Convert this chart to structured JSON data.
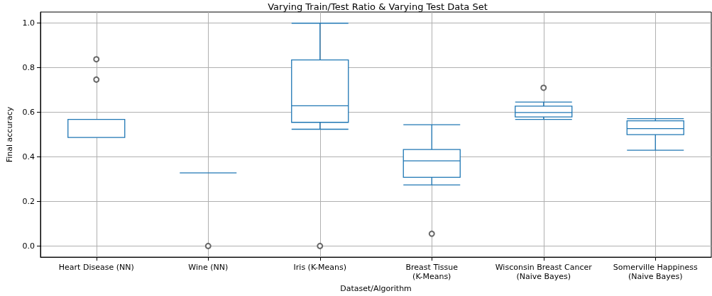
{
  "chart_data": {
    "type": "box",
    "title": "Varying Train/Test Ratio & Varying Test Data Set",
    "xlabel": "Dataset/Algorithm",
    "ylabel": "Final accuracy",
    "categories": [
      "Heart Disease (NN)",
      "Wine (NN)",
      "Iris (K-Means)",
      "Breast Tissue\n(K-Means)",
      "Wisconsin Breast Cancer\n(Naive Bayes)",
      "Somerville Happiness\n(Naive Bayes)"
    ],
    "color": "#1f77b4",
    "boxes": [
      {
        "low": 0.487,
        "q1": 0.487,
        "median": 0.487,
        "q3": 0.568,
        "high": 0.568,
        "outliers": [
          0.838,
          0.747
        ]
      },
      {
        "low": 0.328,
        "q1": 0.328,
        "median": 0.328,
        "q3": 0.328,
        "high": 0.328,
        "outliers": [
          0.0
        ]
      },
      {
        "low": 0.524,
        "q1": 0.555,
        "median": 0.629,
        "q3": 0.835,
        "high": 1.0,
        "outliers": [
          0.0
        ]
      },
      {
        "low": 0.274,
        "q1": 0.308,
        "median": 0.382,
        "q3": 0.433,
        "high": 0.544,
        "outliers": [
          0.055
        ]
      },
      {
        "low": 0.568,
        "q1": 0.579,
        "median": 0.599,
        "q3": 0.628,
        "high": 0.646,
        "outliers": [
          0.71
        ]
      },
      {
        "low": 0.43,
        "q1": 0.5,
        "median": 0.527,
        "q3": 0.562,
        "high": 0.571
      }
    ],
    "ylim": [
      -0.05,
      1.05
    ],
    "yticks": [
      {
        "value": 0,
        "label": "0.0"
      },
      {
        "value": 0.2,
        "label": "0.2"
      },
      {
        "value": 0.4,
        "label": "0.4"
      },
      {
        "value": 0.6,
        "label": "0.6"
      },
      {
        "value": 0.8,
        "label": "0.8"
      },
      {
        "value": 1,
        "label": "1.0"
      }
    ],
    "grid": true,
    "marker": "circle"
  }
}
